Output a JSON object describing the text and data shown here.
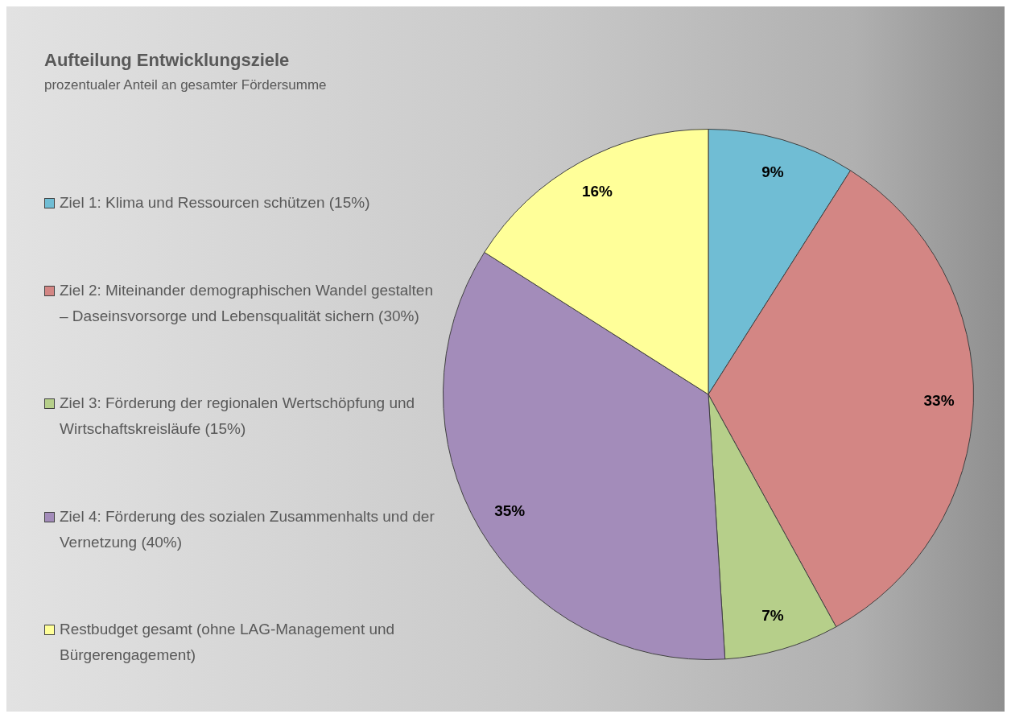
{
  "chart_data": {
    "type": "pie",
    "title": "Aufteilung Entwicklungsziele",
    "subtitle": "prozentualer Anteil an gesamter Fördersumme",
    "categories": [
      "Ziel 1: Klima und Ressourcen schützen (15%)",
      "Ziel 2: Miteinander demographischen Wandel gestalten – Daseinsvorsorge und Lebensqualität sichern (30%)",
      "Ziel 3: Förderung der regionalen Wertschöpfung und Wirtschaftskreisläufe (15%)",
      "Ziel 4: Förderung des sozialen Zusammenhalts und der Vernetzung (40%)",
      "Restbudget gesamt (ohne LAG-Management und Bürgerengagement)"
    ],
    "values": [
      9,
      33,
      7,
      35,
      16
    ],
    "colors": [
      "#70bdd4",
      "#d38684",
      "#b6cf8a",
      "#a38cba",
      "#ffff99"
    ],
    "value_labels": [
      "9%",
      "33%",
      "7%",
      "35%",
      "16%"
    ],
    "legend": "left"
  }
}
